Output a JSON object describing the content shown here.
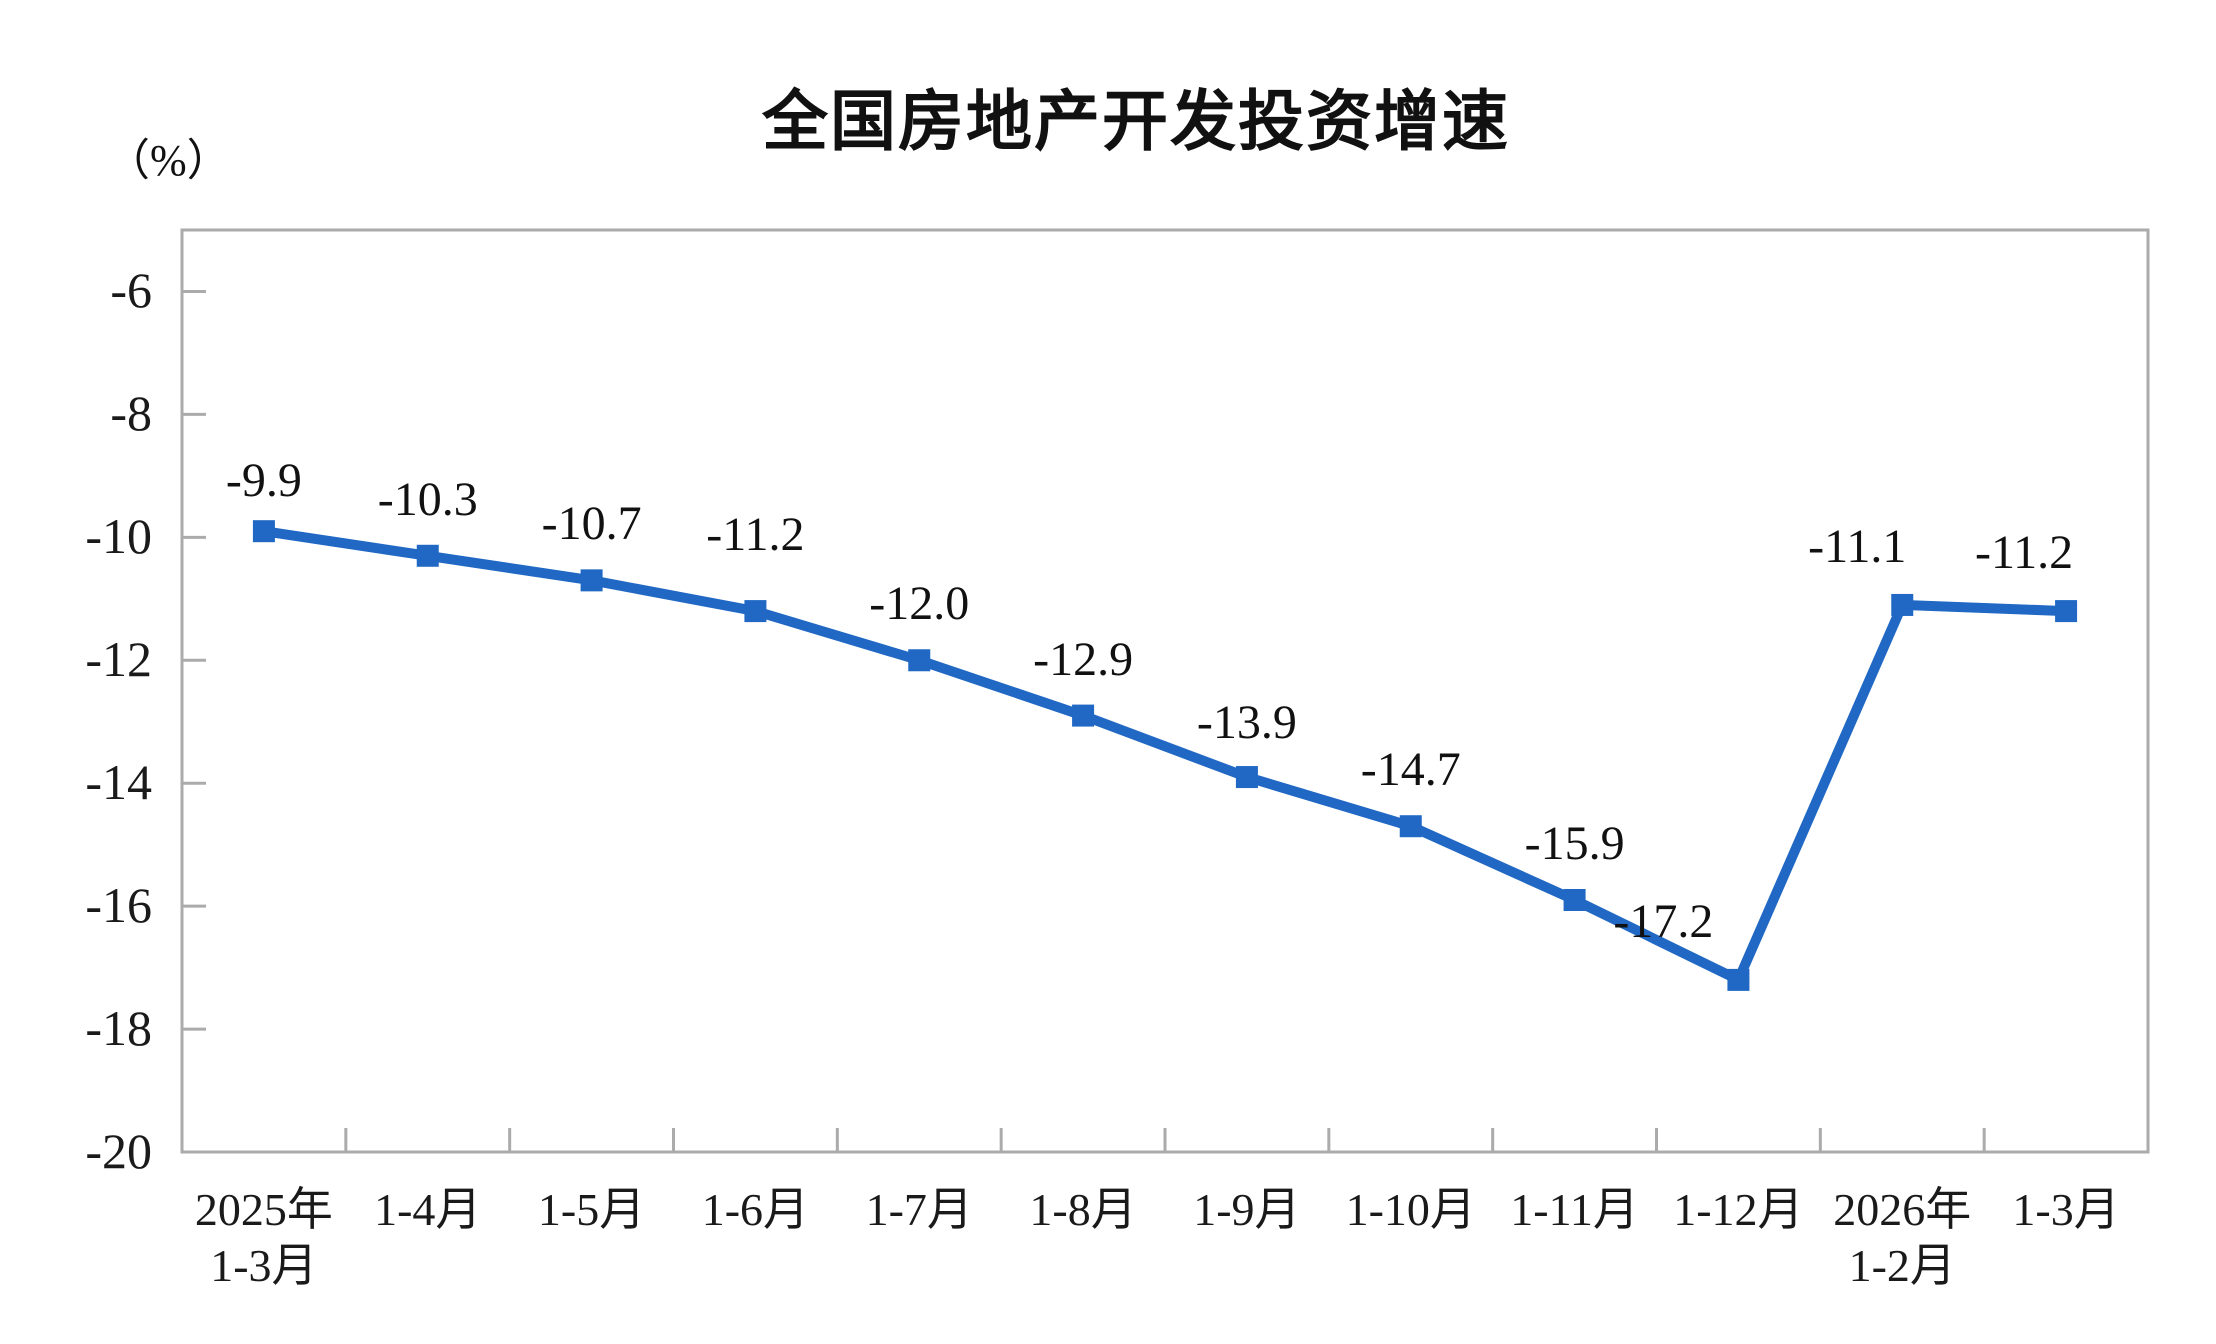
{
  "chart_data": {
    "type": "line",
    "title": "全国房地产开发投资增速",
    "unit_label": "（%）",
    "categories": [
      [
        "2025年",
        "1-3月"
      ],
      [
        "1-4月"
      ],
      [
        "1-5月"
      ],
      [
        "1-6月"
      ],
      [
        "1-7月"
      ],
      [
        "1-8月"
      ],
      [
        "1-9月"
      ],
      [
        "1-10月"
      ],
      [
        "1-11月"
      ],
      [
        "1-12月"
      ],
      [
        "2026年",
        "1-2月"
      ],
      [
        "1-3月"
      ]
    ],
    "values": [
      -9.9,
      -10.3,
      -10.7,
      -11.2,
      -12.0,
      -12.9,
      -13.9,
      -14.7,
      -15.9,
      -17.2,
      -11.1,
      -11.2
    ],
    "data_labels": [
      "-9.9",
      "-10.3",
      "-10.7",
      "-11.2",
      "-12.0",
      "-12.9",
      "-13.9",
      "-14.7",
      "-15.9",
      "-17.2",
      "-11.1",
      "-11.2"
    ],
    "xlabel": "",
    "ylabel": "（%）",
    "ylim": [
      -20,
      -5
    ],
    "yticks": [
      -6,
      -8,
      -10,
      -12,
      -14,
      -16,
      -18,
      -20
    ],
    "grid": false,
    "legend": "none",
    "marker": "square",
    "colors": {
      "series": "#2068C4",
      "axis": "#ABABAB",
      "text": "#1A1A1A"
    }
  }
}
